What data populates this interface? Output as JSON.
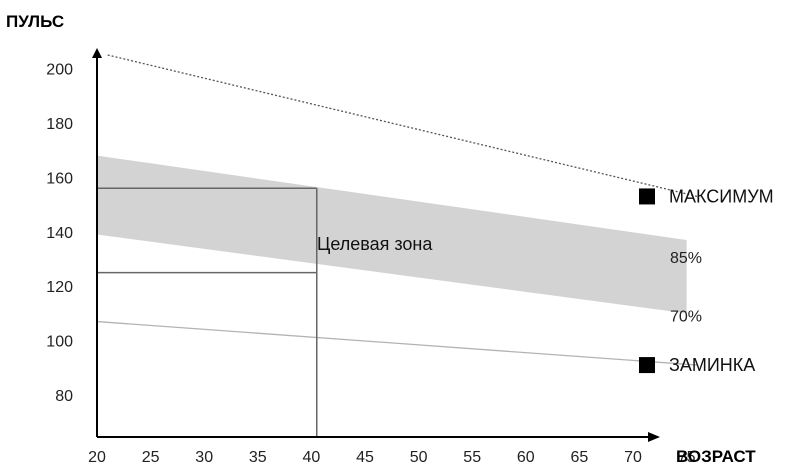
{
  "chart_data": {
    "type": "line",
    "ylabel": "ПУЛЬС",
    "xlabel": "ВОЗРАСТ",
    "x_ticks": [
      20,
      25,
      30,
      35,
      40,
      45,
      50,
      55,
      60,
      65,
      70,
      75
    ],
    "y_ticks": [
      80,
      100,
      120,
      140,
      160,
      180,
      200
    ],
    "xlim": [
      20,
      76
    ],
    "ylim": [
      60,
      215
    ],
    "series": [
      {
        "name": "МАКСИМУМ",
        "x": [
          21,
          76
        ],
        "y": [
          205,
          153
        ],
        "style": "dotted",
        "color": "#555555"
      },
      {
        "name": "ЗАМИНКА",
        "x": [
          20,
          76
        ],
        "y": [
          107,
          91
        ],
        "style": "solid",
        "color": "#b3b3b3"
      }
    ],
    "band": {
      "name": "Целевая зона",
      "x": [
        20,
        75
      ],
      "upper": [
        168,
        137
      ],
      "lower": [
        139,
        110
      ],
      "color": "#d3d3d3"
    },
    "band_upper_label": "85%",
    "band_lower_label": "70%",
    "reference_box": {
      "x": 40.5,
      "y_top": 156,
      "y_mid": 125,
      "color": "#666666"
    },
    "annotation": "Целевая зона",
    "legend_markers": [
      {
        "label": "МАКСИМУМ",
        "y": 153,
        "color": "#000000"
      },
      {
        "label": "ЗАМИНКА",
        "y": 91,
        "color": "#000000"
      }
    ],
    "grid": false
  }
}
